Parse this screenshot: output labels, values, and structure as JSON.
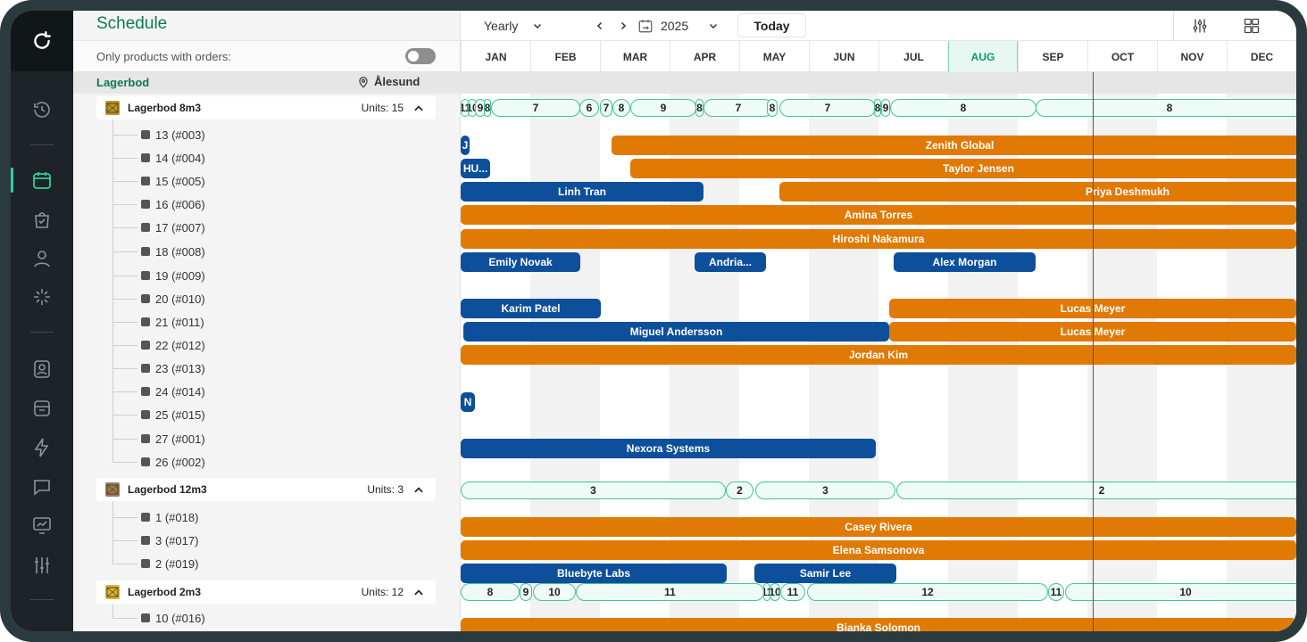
{
  "app": {
    "title": "Schedule"
  },
  "filters": {
    "only_with_orders_label": "Only products with orders:",
    "only_with_orders_on": false
  },
  "location": {
    "label": "Lagerbod",
    "name": "Ålesund"
  },
  "toolbar": {
    "view_mode": "Yearly",
    "year": "2025",
    "today_label": "Today"
  },
  "months": [
    "JAN",
    "FEB",
    "MAR",
    "APR",
    "MAY",
    "JUN",
    "JUL",
    "AUG",
    "SEP",
    "OCT",
    "NOV",
    "DEC"
  ],
  "current_month": "AUG",
  "groups": [
    {
      "name": "Lagerbod 8m3",
      "units_label": "Units: 15",
      "units": [
        "13 (#003)",
        "14 (#004)",
        "15 (#005)",
        "16 (#006)",
        "17 (#007)",
        "18 (#008)",
        "19 (#009)",
        "20 (#010)",
        "21 (#011)",
        "22 (#012)",
        "23 (#013)",
        "24 (#014)",
        "25 (#015)",
        "27 (#001)",
        "26 (#002)"
      ]
    },
    {
      "name": "Lagerbod 12m3",
      "units_label": "Units: 3",
      "units": [
        "1 (#018)",
        "3 (#017)",
        "2 (#019)"
      ]
    },
    {
      "name": "Lagerbod 2m3",
      "units_label": "Units: 12",
      "units": [
        "10 (#016)"
      ]
    }
  ],
  "occupancy": {
    "g0": [
      "11",
      "10",
      "9",
      "8",
      "7",
      "6",
      "7",
      "8",
      "9",
      "8",
      "7",
      "8",
      "7",
      "8",
      "9",
      "8"
    ],
    "g1": [
      "3",
      "2",
      "3",
      "2"
    ],
    "g2": [
      "8",
      "9",
      "10",
      "11",
      "11",
      "10",
      "11",
      "12",
      "11",
      "10"
    ]
  },
  "bookings": [
    {
      "label": "J",
      "color": "blue"
    },
    {
      "label": "Zenith Global",
      "color": "orange"
    },
    {
      "label": "HU...",
      "color": "blue"
    },
    {
      "label": "Taylor Jensen",
      "color": "orange"
    },
    {
      "label": "Linh Tran",
      "color": "blue"
    },
    {
      "label": "Priya Deshmukh",
      "color": "orange"
    },
    {
      "label": "Amina Torres",
      "color": "orange"
    },
    {
      "label": "Hiroshi Nakamura",
      "color": "orange"
    },
    {
      "label": "Emily Novak",
      "color": "blue"
    },
    {
      "label": "Andria...",
      "color": "blue"
    },
    {
      "label": "Alex Morgan",
      "color": "blue"
    },
    {
      "label": "Karim Patel",
      "color": "blue"
    },
    {
      "label": "Lucas Meyer",
      "color": "orange"
    },
    {
      "label": "Miguel Andersson",
      "color": "blue"
    },
    {
      "label": "Lucas Meyer",
      "color": "orange"
    },
    {
      "label": "Jordan Kim",
      "color": "orange"
    },
    {
      "label": "N",
      "color": "blue"
    },
    {
      "label": "Nexora Systems",
      "color": "blue"
    },
    {
      "label": "Casey Rivera",
      "color": "orange"
    },
    {
      "label": "Elena Samsonova",
      "color": "orange"
    },
    {
      "label": "Bluebyte Labs",
      "color": "blue"
    },
    {
      "label": "Samir Lee",
      "color": "blue"
    },
    {
      "label": "Bianka Solomon",
      "color": "orange"
    }
  ],
  "colors": {
    "accent": "#0f7a55",
    "booking_blue": "#0d4f9b",
    "booking_orange": "#e07a05",
    "pill_border": "#40c59a"
  },
  "sidebar_icons": [
    "refresh-logo-icon",
    "history-icon",
    "calendar-icon",
    "bag-check-icon",
    "user-icon",
    "sparkle-icon",
    "contact-card-icon",
    "archive-box-icon",
    "lightning-icon",
    "chat-icon",
    "analytics-icon",
    "sliders-icon"
  ]
}
